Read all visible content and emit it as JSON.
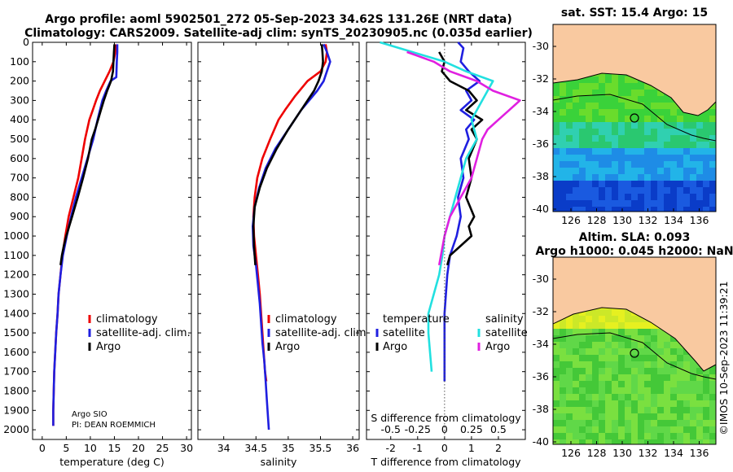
{
  "header": {
    "line1": "Argo profile: aoml 5902501_272 05-Sep-2023 34.62S 131.26E (NRT data)",
    "line2": "Climatology: CARS2009. Satellite-adj clim: synTS_20230905.nc (0.035d earlier)"
  },
  "credit": {
    "line1": "Argo SIO",
    "line2": "PI: DEAN ROEMMICH"
  },
  "timestamp": "©IMOS 10-Sep-2023 11:39:21",
  "colors": {
    "climatology": "#ee0000",
    "satellite": "#1f1fe0",
    "argo": "#000000",
    "sal_satellite": "#22e0e0",
    "sal_argo": "#e020e0",
    "land": "#f9c9a0"
  },
  "chart_data": [
    {
      "type": "line",
      "xlabel": "temperature (deg C)",
      "ylim": [
        2050,
        0
      ],
      "xlim": [
        -2,
        31
      ],
      "yticks": [
        0,
        100,
        200,
        300,
        400,
        500,
        600,
        700,
        800,
        900,
        1000,
        1100,
        1200,
        1300,
        1400,
        1500,
        1600,
        1700,
        1800,
        1900,
        2000
      ],
      "xticks": [
        0,
        5,
        10,
        15,
        20,
        25,
        30
      ],
      "legend": [
        "climatology",
        "satellite-adj. clim.",
        "Argo"
      ],
      "series": [
        {
          "name": "climatology",
          "color": "#ee0000",
          "x": [
            15.3,
            15.2,
            14.8,
            14.0,
            13.0,
            12.0,
            11.2,
            10.5,
            9.8,
            8.9,
            7.5,
            6.5,
            5.5,
            4.8,
            4.2,
            3.8,
            3.4,
            3.2,
            2.9,
            2.7,
            2.5,
            2.4,
            2.3,
            2.3
          ],
          "y": [
            10,
            50,
            100,
            150,
            200,
            250,
            300,
            350,
            400,
            500,
            700,
            800,
            900,
            1000,
            1100,
            1200,
            1300,
            1400,
            1500,
            1600,
            1700,
            1800,
            1900,
            1980
          ]
        },
        {
          "name": "satellite-adj. clim.",
          "color": "#1f1fe0",
          "x": [
            15.6,
            15.6,
            15.5,
            15.4,
            14.2,
            13.3,
            12.5,
            11.5,
            10.6,
            8.2,
            7.0,
            6.0,
            5.1,
            4.3,
            3.8,
            3.4,
            3.2,
            2.9,
            2.7,
            2.5,
            2.4,
            2.3,
            2.3
          ],
          "y": [
            10,
            50,
            100,
            180,
            200,
            250,
            300,
            400,
            500,
            700,
            800,
            900,
            1000,
            1100,
            1200,
            1300,
            1400,
            1500,
            1600,
            1700,
            1800,
            1900,
            1980
          ]
        },
        {
          "name": "Argo",
          "color": "#000000",
          "x": [
            15.0,
            14.9,
            14.8,
            14.7,
            14.3,
            13.5,
            12.8,
            12.2,
            11.6,
            11.0,
            10.3,
            9.5,
            8.5,
            7.4,
            6.2,
            5.0,
            4.5,
            4.1,
            3.8
          ],
          "y": [
            10,
            50,
            100,
            150,
            200,
            250,
            300,
            350,
            400,
            450,
            500,
            600,
            700,
            800,
            900,
            1000,
            1050,
            1100,
            1150
          ]
        }
      ]
    },
    {
      "type": "line",
      "xlabel": "salinity",
      "ylim": [
        2050,
        0
      ],
      "xlim": [
        33.6,
        36.1
      ],
      "xticks": [
        34,
        34.5,
        35,
        35.5,
        36
      ],
      "legend": [
        "climatology",
        "satellite-adj. clim.",
        "Argo"
      ],
      "series": [
        {
          "name": "climatology",
          "color": "#ee0000",
          "x": [
            35.58,
            35.6,
            35.58,
            35.5,
            35.3,
            35.1,
            34.95,
            34.85,
            34.72,
            34.6,
            34.52,
            34.48,
            34.46,
            34.47,
            34.5,
            34.53,
            34.56,
            34.58,
            34.6,
            34.62,
            34.64,
            34.66
          ],
          "y": [
            10,
            50,
            100,
            150,
            200,
            280,
            350,
            400,
            500,
            600,
            700,
            800,
            900,
            1000,
            1100,
            1200,
            1300,
            1400,
            1500,
            1600,
            1700,
            1750
          ]
        },
        {
          "name": "satellite-adj. clim.",
          "color": "#1f1fe0",
          "x": [
            35.55,
            35.6,
            35.65,
            35.6,
            35.55,
            35.45,
            35.2,
            35.0,
            34.8,
            34.65,
            34.55,
            34.48,
            34.45,
            34.46,
            34.5,
            34.53,
            34.56,
            34.58,
            34.6,
            34.63,
            34.65,
            34.67,
            34.7
          ],
          "y": [
            10,
            50,
            100,
            150,
            200,
            250,
            350,
            450,
            550,
            650,
            750,
            850,
            950,
            1050,
            1150,
            1250,
            1350,
            1450,
            1550,
            1650,
            1750,
            1850,
            2000
          ]
        },
        {
          "name": "Argo",
          "color": "#000000",
          "x": [
            35.52,
            35.53,
            35.54,
            35.52,
            35.47,
            35.4,
            35.2,
            35.0,
            34.82,
            34.67,
            34.56,
            34.48,
            34.46,
            34.47,
            34.49
          ],
          "y": [
            10,
            50,
            100,
            150,
            200,
            250,
            350,
            450,
            550,
            650,
            750,
            850,
            950,
            1050,
            1150
          ]
        }
      ]
    },
    {
      "type": "line",
      "xlabel": "T difference from climatology",
      "xlabel2": "S difference from climatology",
      "ylim": [
        2050,
        0
      ],
      "xlim": [
        -2.9,
        3.0
      ],
      "xticks": [
        -2,
        -1,
        0,
        1,
        2
      ],
      "xticks2": [
        -0.5,
        -0.25,
        0,
        0.25,
        0.5
      ],
      "legend_t": [
        "temperature",
        "satellite",
        "Argo"
      ],
      "legend_s": [
        "salinity",
        "satellite",
        "Argo"
      ],
      "series": [
        {
          "name": "T satellite",
          "color": "#1f1fe0",
          "x": [
            0.5,
            0.7,
            0.6,
            0.9,
            1.3,
            0.8,
            1.0,
            0.6,
            1.1,
            0.8,
            0.9,
            0.6,
            0.7,
            0.5,
            0.6,
            0.45,
            0.2,
            0.1,
            0.05,
            0.0,
            0.0,
            0.0,
            0.0
          ],
          "y": [
            0,
            30,
            100,
            150,
            200,
            250,
            300,
            350,
            400,
            450,
            500,
            600,
            700,
            800,
            900,
            1000,
            1100,
            1200,
            1300,
            1400,
            1500,
            1600,
            1750
          ]
        },
        {
          "name": "T Argo",
          "color": "#000000",
          "x": [
            -0.2,
            0.0,
            -0.1,
            0.2,
            0.9,
            1.2,
            0.8,
            1.4,
            1.0,
            1.2,
            0.9,
            1.0,
            0.8,
            1.1,
            0.9,
            1.0,
            0.6,
            0.2,
            0.1
          ],
          "y": [
            50,
            100,
            150,
            200,
            250,
            300,
            350,
            400,
            450,
            500,
            600,
            700,
            800,
            900,
            950,
            1000,
            1050,
            1100,
            1150
          ]
        },
        {
          "name": "S satellite",
          "color": "#22e0e0",
          "x": [
            -0.6,
            -0.3,
            0.0,
            0.2,
            0.45,
            0.4,
            0.35,
            0.25,
            0.3,
            0.2,
            0.15,
            0.1,
            0.05,
            0.0,
            -0.02,
            -0.05,
            -0.1,
            -0.15,
            -0.15,
            -0.12
          ],
          "y": [
            0,
            50,
            100,
            150,
            200,
            250,
            300,
            400,
            500,
            600,
            700,
            800,
            900,
            1000,
            1100,
            1200,
            1300,
            1400,
            1500,
            1700
          ]
        },
        {
          "name": "S Argo",
          "color": "#e020e0",
          "x": [
            -0.35,
            -0.1,
            0.05,
            0.3,
            0.45,
            0.7,
            0.6,
            0.5,
            0.4,
            0.35,
            0.3,
            0.25,
            0.15,
            0.05,
            0.0,
            -0.05
          ],
          "y": [
            50,
            100,
            150,
            200,
            250,
            300,
            350,
            400,
            450,
            500,
            600,
            700,
            800,
            900,
            1000,
            1150
          ]
        }
      ]
    }
  ],
  "maps": [
    {
      "title": "sat. SST: 15.4 Argo: 15",
      "yticks": [
        "-30",
        "-32",
        "-34",
        "-36",
        "-38",
        "-40"
      ],
      "xticks": [
        "126",
        "128",
        "130",
        "132",
        "134",
        "136"
      ]
    },
    {
      "title": "Altim. SLA: 0.093",
      "subtitle": "Argo h1000: 0.045 h2000: NaN",
      "yticks": [
        "-30",
        "-32",
        "-34",
        "-36",
        "-38",
        "-40"
      ],
      "xticks": [
        "126",
        "128",
        "130",
        "132",
        "134",
        "136"
      ]
    }
  ]
}
